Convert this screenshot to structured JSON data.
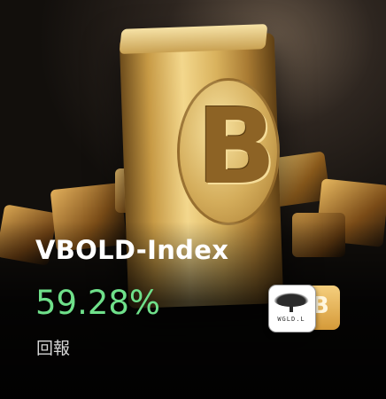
{
  "card": {
    "title": "VBOLD-Index",
    "return_value": "59.28%",
    "return_label": "回報",
    "accent_color": "#6fe08a"
  },
  "image": {
    "bar_symbol": "B",
    "bar_symbol_icon": "bitcoin-icon"
  },
  "badge": {
    "text": "WGLD.L",
    "coin_glyph": "B",
    "coin_icon": "bitcoin-icon",
    "logo_icon": "tree-icon"
  }
}
